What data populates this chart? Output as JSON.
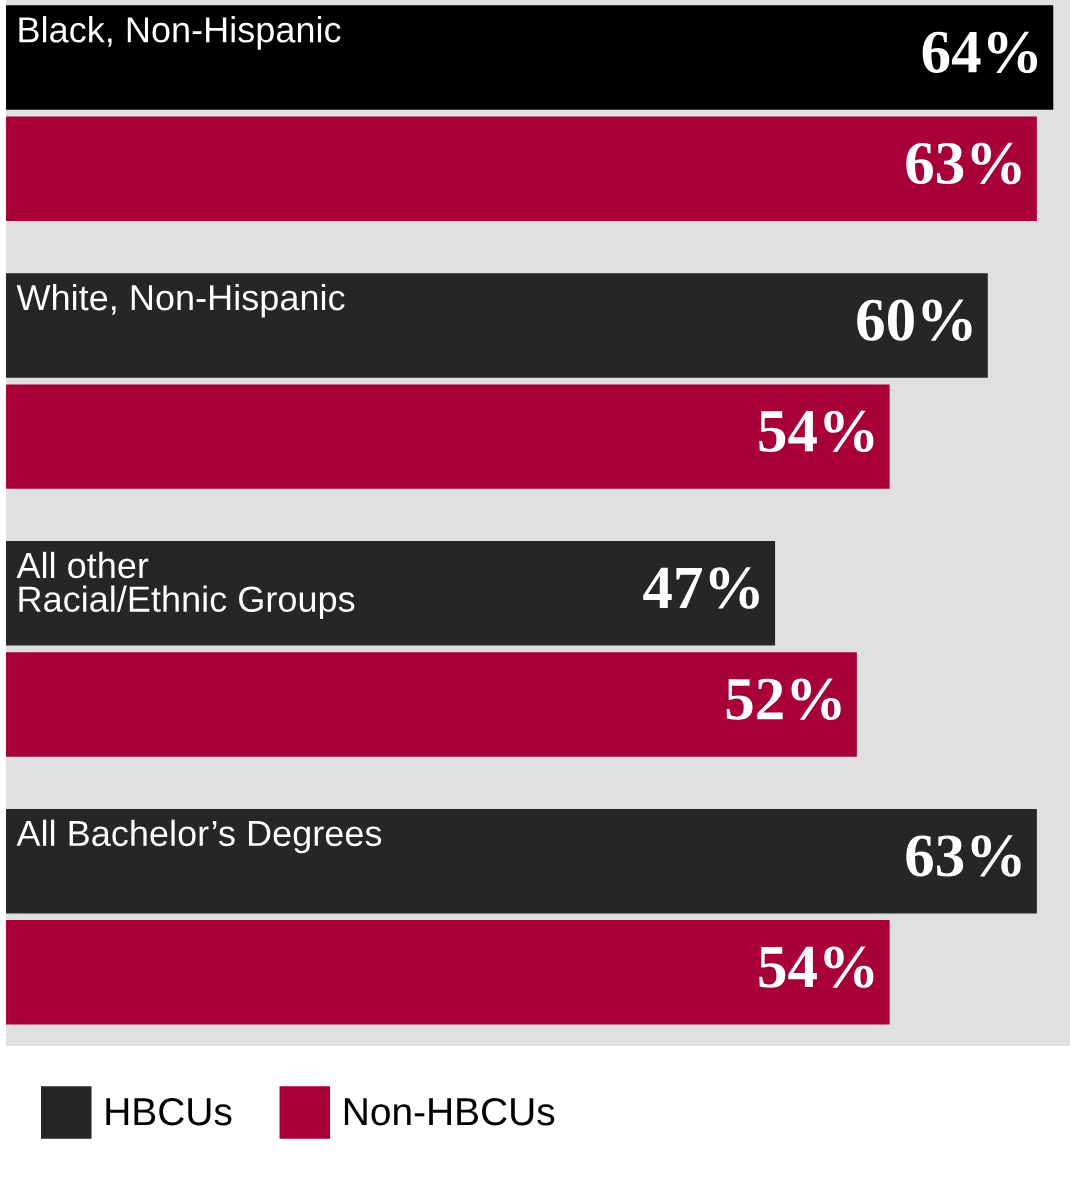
{
  "chart_data": {
    "type": "bar",
    "orientation": "horizontal",
    "categories": [
      "Black, Non-Hispanic",
      "White, Non-Hispanic",
      "All other\nRacial/Ethnic Groups",
      "All Bachelor’s Degrees"
    ],
    "series": [
      {
        "name": "HBCUs",
        "color": "#262626",
        "colors": [
          "#000000",
          "#262626",
          "#262626",
          "#262626"
        ],
        "values": [
          64,
          60,
          47,
          63
        ],
        "value_labels": [
          "64%",
          "60%",
          "47%",
          "63%"
        ]
      },
      {
        "name": "Non-HBCUs",
        "color": "#a8003a",
        "values": [
          63,
          54,
          52,
          54
        ],
        "value_labels": [
          "63%",
          "54%",
          "52%",
          "54%"
        ]
      }
    ],
    "legend": "bottom left"
  }
}
